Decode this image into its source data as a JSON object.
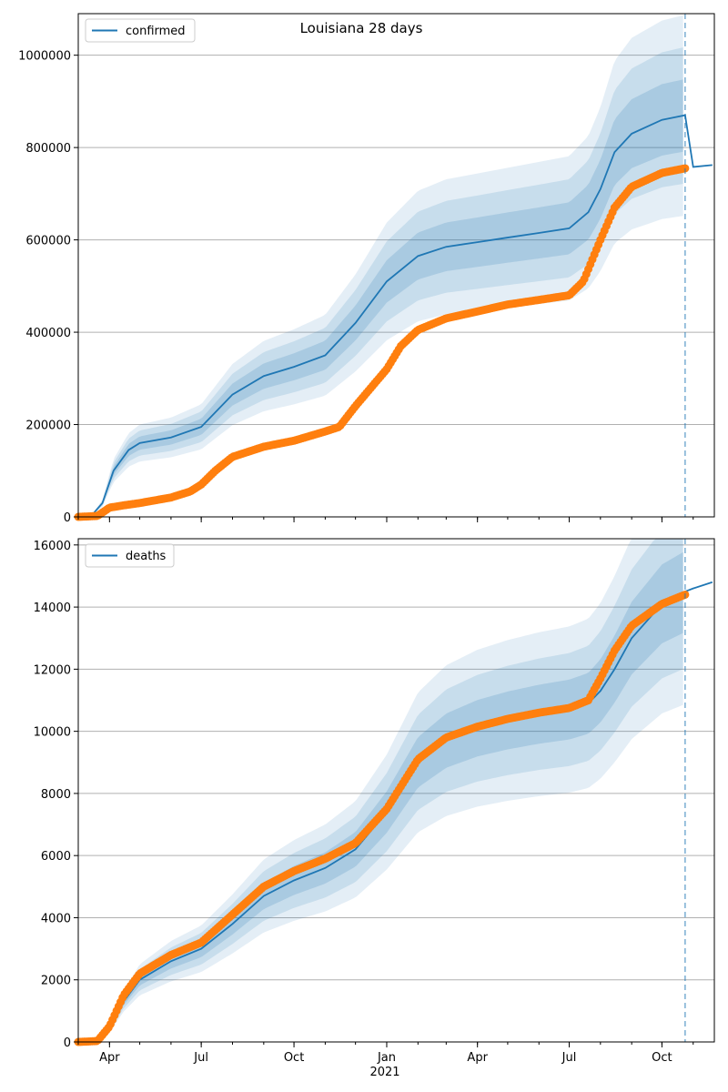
{
  "chart_data": [
    {
      "type": "line",
      "title": "Louisiana 28 days",
      "xlabel": "",
      "ylabel": "",
      "legend": {
        "placement": "top-left",
        "entries": [
          "confirmed"
        ]
      },
      "grid": {
        "y": true,
        "x": false
      },
      "ylim": [
        0,
        1090000
      ],
      "x_ticks": [
        "Apr",
        "Jul",
        "Oct",
        "Jan",
        "Apr",
        "Jul",
        "Oct"
      ],
      "y_ticks": [
        "0",
        "200000",
        "400000",
        "600000",
        "800000",
        "1000000"
      ],
      "y_tick_values": [
        0,
        200000,
        400000,
        600000,
        800000,
        1000000
      ],
      "forecast_start": "2021-10-24",
      "series": [
        {
          "name": "confirmed",
          "kind": "model-median",
          "x": [
            "2020-03-01",
            "2020-03-15",
            "2020-03-25",
            "2020-04-05",
            "2020-04-20",
            "2020-05-01",
            "2020-06-01",
            "2020-07-01",
            "2020-08-01",
            "2020-09-01",
            "2020-10-01",
            "2020-11-01",
            "2020-12-01",
            "2021-01-01",
            "2021-02-01",
            "2021-03-01",
            "2021-04-01",
            "2021-05-01",
            "2021-06-01",
            "2021-07-01",
            "2021-07-20",
            "2021-08-01",
            "2021-08-15",
            "2021-09-01",
            "2021-10-01",
            "2021-10-24",
            "2021-11-01",
            "2021-11-20"
          ],
          "values": [
            0,
            5000,
            30000,
            100000,
            145000,
            160000,
            172000,
            195000,
            265000,
            305000,
            325000,
            350000,
            420000,
            510000,
            565000,
            585000,
            595000,
            605000,
            615000,
            625000,
            660000,
            710000,
            790000,
            830000,
            860000,
            870000,
            758000,
            762000
          ]
        },
        {
          "name": "",
          "kind": "observed",
          "x": [
            "2020-03-01",
            "2020-03-20",
            "2020-04-01",
            "2020-04-15",
            "2020-05-01",
            "2020-06-01",
            "2020-06-20",
            "2020-07-01",
            "2020-07-15",
            "2020-08-01",
            "2020-09-01",
            "2020-10-01",
            "2020-11-01",
            "2020-11-15",
            "2020-12-01",
            "2021-01-01",
            "2021-01-15",
            "2021-02-01",
            "2021-03-01",
            "2021-04-01",
            "2021-05-01",
            "2021-06-01",
            "2021-07-01",
            "2021-07-15",
            "2021-08-01",
            "2021-08-15",
            "2021-09-01",
            "2021-10-01",
            "2021-10-24"
          ],
          "values": [
            0,
            2000,
            20000,
            25000,
            30000,
            42000,
            55000,
            70000,
            100000,
            130000,
            152000,
            165000,
            185000,
            195000,
            240000,
            320000,
            370000,
            405000,
            430000,
            445000,
            460000,
            470000,
            480000,
            510000,
            600000,
            670000,
            715000,
            745000,
            755000
          ]
        }
      ]
    },
    {
      "type": "line",
      "title": "",
      "xlabel": "2021",
      "ylabel": "",
      "legend": {
        "placement": "top-left",
        "entries": [
          "deaths"
        ]
      },
      "grid": {
        "y": true,
        "x": false
      },
      "ylim": [
        0,
        16200
      ],
      "x_ticks": [
        "Apr",
        "Jul",
        "Oct",
        "Jan",
        "Apr",
        "Jul",
        "Oct"
      ],
      "y_ticks": [
        "0",
        "2000",
        "4000",
        "6000",
        "8000",
        "10000",
        "12000",
        "14000",
        "16000"
      ],
      "y_tick_values": [
        0,
        2000,
        4000,
        6000,
        8000,
        10000,
        12000,
        14000,
        16000
      ],
      "forecast_start": "2021-10-24",
      "series": [
        {
          "name": "deaths",
          "kind": "model-median",
          "x": [
            "2020-03-01",
            "2020-03-20",
            "2020-04-01",
            "2020-04-15",
            "2020-05-01",
            "2020-06-01",
            "2020-07-01",
            "2020-08-01",
            "2020-09-01",
            "2020-10-01",
            "2020-11-01",
            "2020-12-01",
            "2021-01-01",
            "2021-02-01",
            "2021-03-01",
            "2021-04-01",
            "2021-05-01",
            "2021-06-01",
            "2021-07-01",
            "2021-07-20",
            "2021-08-01",
            "2021-08-15",
            "2021-09-01",
            "2021-10-01",
            "2021-10-24",
            "2021-11-01",
            "2021-11-20"
          ],
          "values": [
            0,
            30,
            400,
            1300,
            2000,
            2600,
            3000,
            3800,
            4700,
            5200,
            5600,
            6200,
            7400,
            9000,
            9700,
            10100,
            10350,
            10550,
            10700,
            10900,
            11300,
            12000,
            13000,
            14100,
            14500,
            14600,
            14800
          ]
        },
        {
          "name": "",
          "kind": "observed",
          "x": [
            "2020-03-01",
            "2020-03-20",
            "2020-04-01",
            "2020-04-15",
            "2020-05-01",
            "2020-06-01",
            "2020-07-01",
            "2020-08-01",
            "2020-09-01",
            "2020-10-01",
            "2020-11-01",
            "2020-12-01",
            "2021-01-01",
            "2021-02-01",
            "2021-03-01",
            "2021-04-01",
            "2021-05-01",
            "2021-06-01",
            "2021-07-01",
            "2021-07-20",
            "2021-08-01",
            "2021-08-15",
            "2021-09-01",
            "2021-10-01",
            "2021-10-24"
          ],
          "values": [
            0,
            30,
            500,
            1500,
            2200,
            2800,
            3200,
            4100,
            5000,
            5500,
            5900,
            6400,
            7500,
            9100,
            9800,
            10150,
            10400,
            10600,
            10750,
            11000,
            11700,
            12600,
            13400,
            14100,
            14400
          ]
        }
      ]
    }
  ],
  "colors": {
    "model": "#1f77b4",
    "observed": "#ff7f0e",
    "band": "#1f77b4",
    "grid": "#b0b0b0",
    "forecast_line": "#1f77b4"
  }
}
